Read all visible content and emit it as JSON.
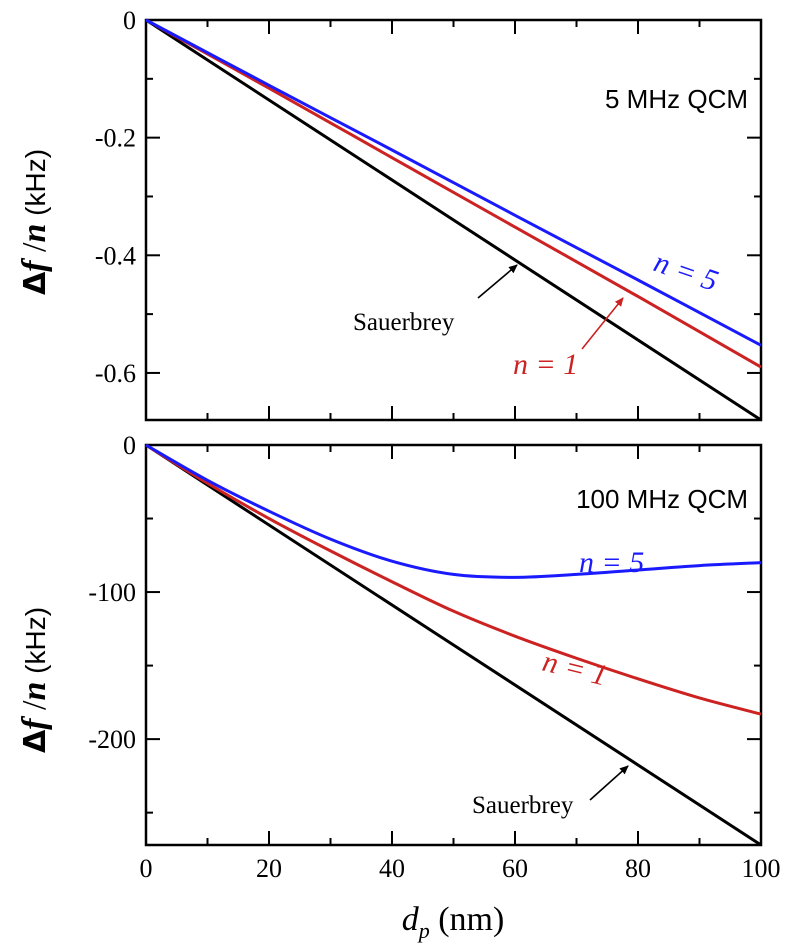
{
  "chart_data": [
    {
      "type": "line",
      "panel": "top",
      "annotation": "5 MHz QCM",
      "ylabel": {
        "prefix": "Δ",
        "f": "f",
        "slash": " /",
        "n": "n",
        "unit": " (kHz)"
      },
      "xlim": [
        0,
        100
      ],
      "ylim": [
        -0.68,
        0
      ],
      "x_ticks": [
        0,
        20,
        40,
        60,
        80,
        100
      ],
      "y_ticks": [
        0,
        -0.2,
        -0.4,
        -0.6
      ],
      "y_tick_labels": [
        "0",
        "-0.2",
        "-0.4",
        "-0.6"
      ],
      "series": [
        {
          "name": "Sauerbrey",
          "color": "#000000",
          "x": [
            0,
            100
          ],
          "y": [
            0,
            -0.68
          ]
        },
        {
          "name": "n = 1",
          "color": "#cc2222",
          "x": [
            0,
            20,
            40,
            60,
            80,
            100
          ],
          "y": [
            0,
            -0.116,
            -0.234,
            -0.352,
            -0.47,
            -0.59
          ]
        },
        {
          "name": "n = 5",
          "color": "#1a1aff",
          "x": [
            0,
            20,
            40,
            60,
            80,
            100
          ],
          "y": [
            0,
            -0.111,
            -0.221,
            -0.332,
            -0.442,
            -0.553
          ]
        }
      ],
      "labels": {
        "sauerbrey": "Sauerbrey",
        "n1": "n = 1",
        "n5": "n = 5"
      }
    },
    {
      "type": "line",
      "panel": "bottom",
      "annotation": "100 MHz QCM",
      "ylabel": {
        "prefix": "Δ",
        "f": "f",
        "slash": " /",
        "n": "n",
        "unit": " (kHz)"
      },
      "xlabel": {
        "d": "d",
        "sub": "p",
        "unit": " (nm)"
      },
      "xlim": [
        0,
        100
      ],
      "ylim": [
        -272,
        0
      ],
      "x_ticks": [
        0,
        20,
        40,
        60,
        80,
        100
      ],
      "x_tick_labels": [
        "0",
        "20",
        "40",
        "60",
        "80",
        "100"
      ],
      "y_ticks": [
        0,
        -100,
        -200
      ],
      "y_tick_labels": [
        "0",
        "-100",
        "-200"
      ],
      "series": [
        {
          "name": "Sauerbrey",
          "color": "#000000",
          "x": [
            0,
            100
          ],
          "y": [
            0,
            -272
          ]
        },
        {
          "name": "n = 1",
          "color": "#cc2222",
          "x": [
            0,
            10,
            20,
            30,
            40,
            50,
            60,
            70,
            80,
            90,
            100
          ],
          "y": [
            0,
            -26,
            -50,
            -72,
            -93,
            -113,
            -130,
            -145,
            -159,
            -172,
            -183
          ]
        },
        {
          "name": "n = 5",
          "color": "#1a1aff",
          "x": [
            0,
            10,
            20,
            30,
            40,
            50,
            60,
            70,
            80,
            90,
            100
          ],
          "y": [
            0,
            -24,
            -45,
            -64,
            -79,
            -88,
            -90,
            -88,
            -85,
            -82,
            -80
          ]
        }
      ],
      "labels": {
        "sauerbrey": "Sauerbrey",
        "n1": "n = 1",
        "n5": "n = 5"
      }
    }
  ]
}
